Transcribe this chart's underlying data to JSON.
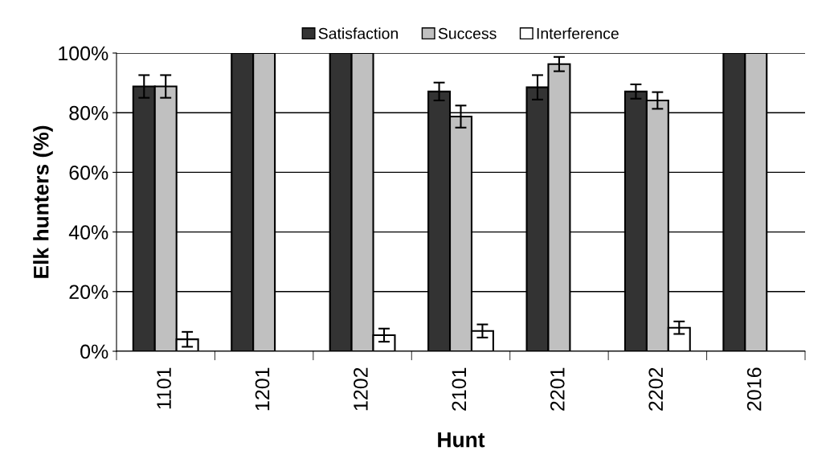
{
  "chart_data": {
    "type": "bar",
    "xlabel": "Hunt",
    "ylabel": "Elk hunters (%)",
    "categories": [
      "1101",
      "1201",
      "1202",
      "2101",
      "2201",
      "2202",
      "2016"
    ],
    "series": [
      {
        "name": "Satisfaction",
        "color": "#333333",
        "values": [
          88.8,
          100,
          100,
          87.1,
          88.5,
          87.1,
          100
        ],
        "errors": [
          3.8,
          null,
          null,
          3.0,
          4.1,
          2.4,
          null
        ]
      },
      {
        "name": "Success",
        "color": "#c0c0c0",
        "values": [
          88.8,
          100,
          100,
          78.7,
          96.3,
          84.1,
          100
        ],
        "errors": [
          3.8,
          null,
          null,
          3.7,
          2.4,
          2.8,
          null
        ]
      },
      {
        "name": "Interference",
        "color": "#ffffff",
        "values": [
          4.0,
          null,
          5.4,
          6.8,
          null,
          7.9,
          null
        ],
        "errors": [
          2.5,
          null,
          2.2,
          2.2,
          null,
          2.1,
          null
        ]
      }
    ],
    "ylim": [
      0,
      100
    ],
    "yticks": [
      {
        "value": 0,
        "label": "0%"
      },
      {
        "value": 20,
        "label": "20%"
      },
      {
        "value": 40,
        "label": "40%"
      },
      {
        "value": 60,
        "label": "60%"
      },
      {
        "value": 80,
        "label": "80%"
      },
      {
        "value": 100,
        "label": "100%"
      }
    ],
    "grid": "y",
    "legend": "top"
  }
}
